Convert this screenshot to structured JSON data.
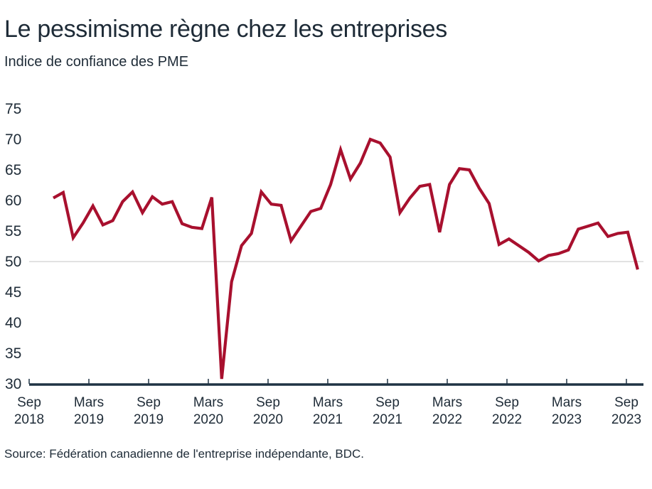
{
  "title": "Le pessimisme règne chez les entreprises",
  "subtitle": "Indice de confiance des PME",
  "source": "Source: Fédération canadienne de l'entreprise indépendante, BDC.",
  "colors": {
    "line": "#A8102E",
    "text": "#1E2B37",
    "axis": "#1F3344",
    "gridline": "#D9D9D9"
  },
  "chart_data": {
    "type": "line",
    "title": "Le pessimisme règne chez les entreprises",
    "subtitle": "Indice de confiance des PME",
    "xlabel": "",
    "ylabel": "",
    "ylim": [
      30,
      75
    ],
    "yticks": [
      "75",
      "70",
      "65",
      "60",
      "55",
      "50",
      "45",
      "40",
      "35",
      "30"
    ],
    "reference_line": 50,
    "grid": false,
    "legend": "none",
    "xticks": [
      {
        "month": "Sep",
        "year": "2018"
      },
      {
        "month": "Mars",
        "year": "2019"
      },
      {
        "month": "Sep",
        "year": "2019"
      },
      {
        "month": "Mars",
        "year": "2020"
      },
      {
        "month": "Sep",
        "year": "2020"
      },
      {
        "month": "Mars",
        "year": "2021"
      },
      {
        "month": "Sep",
        "year": "2021"
      },
      {
        "month": "Mars",
        "year": "2022"
      },
      {
        "month": "Sep",
        "year": "2022"
      },
      {
        "month": "Mars",
        "year": "2023"
      },
      {
        "month": "Sep",
        "year": "2023"
      }
    ],
    "series": [
      {
        "name": "Indice de confiance des PME",
        "start": "2018-11",
        "frequency": "monthly",
        "values": [
          60.4,
          61.3,
          53.9,
          56.3,
          59.1,
          56.0,
          56.7,
          59.8,
          61.4,
          58.0,
          60.6,
          59.4,
          59.8,
          56.2,
          55.6,
          55.4,
          60.5,
          30.8,
          46.7,
          52.6,
          54.6,
          61.4,
          59.4,
          59.2,
          53.4,
          55.8,
          58.2,
          58.7,
          62.6,
          68.3,
          63.5,
          66.1,
          70.0,
          69.4,
          67.1,
          58.0,
          60.4,
          62.3,
          62.6,
          54.8,
          62.6,
          65.2,
          65.0,
          62.0,
          59.5,
          52.8,
          53.7,
          52.6,
          51.5,
          50.1,
          51.0,
          51.3,
          51.9,
          55.3,
          55.8,
          56.3,
          54.1,
          54.6,
          54.8,
          48.7
        ]
      }
    ]
  }
}
